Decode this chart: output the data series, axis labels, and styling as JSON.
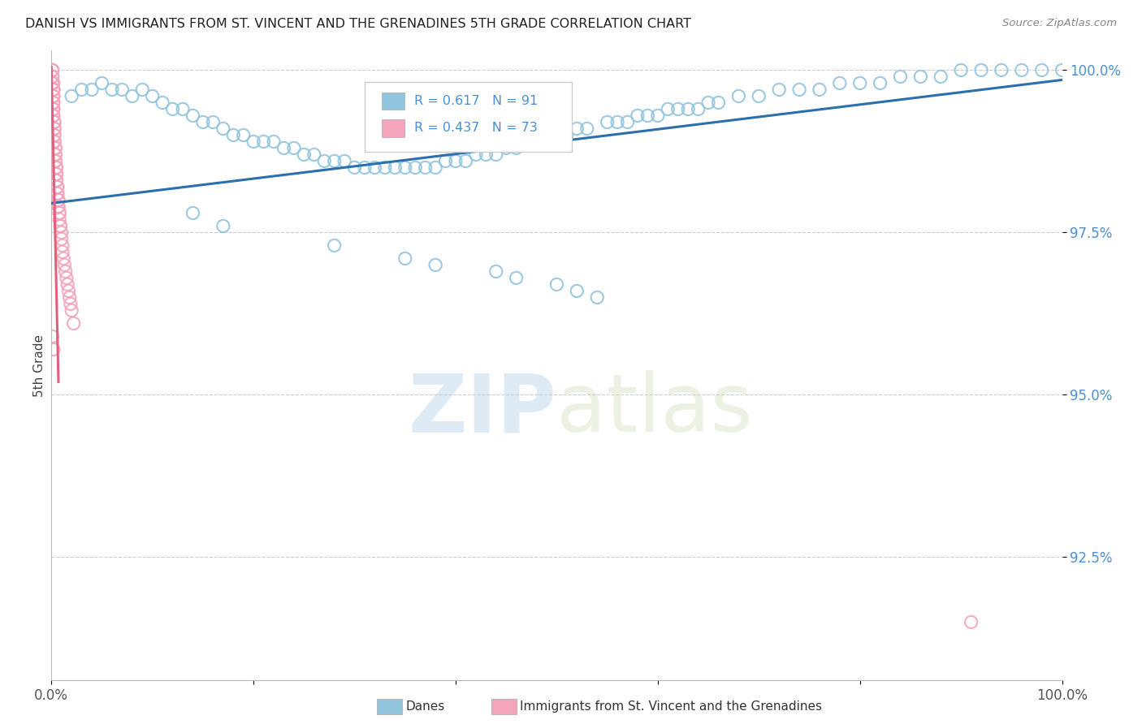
{
  "title": "DANISH VS IMMIGRANTS FROM ST. VINCENT AND THE GRENADINES 5TH GRADE CORRELATION CHART",
  "source": "Source: ZipAtlas.com",
  "ylabel": "5th Grade",
  "xlim": [
    0.0,
    1.0
  ],
  "ylim": [
    0.906,
    1.003
  ],
  "yticks": [
    0.925,
    0.95,
    0.975,
    1.0
  ],
  "ytick_labels": [
    "92.5%",
    "95.0%",
    "97.5%",
    "100.0%"
  ],
  "xticks": [
    0.0,
    0.2,
    0.4,
    0.6,
    0.8,
    1.0
  ],
  "xtick_labels": [
    "0.0%",
    "",
    "",
    "",
    "",
    "100.0%"
  ],
  "blue_color": "#92c5de",
  "pink_color": "#f4a5bc",
  "blue_line_color": "#2c6fad",
  "pink_line_color": "#e0607e",
  "legend_blue_R": "R = 0.617",
  "legend_blue_N": "N = 91",
  "legend_pink_R": "R = 0.437",
  "legend_pink_N": "N = 73",
  "legend_label_blue": "Danes",
  "legend_label_pink": "Immigrants from St. Vincent and the Grenadines",
  "blue_trendline_x": [
    0.0,
    1.0
  ],
  "blue_trendline_y": [
    0.9795,
    0.9985
  ],
  "pink_trendline_x": [
    0.0,
    0.007
  ],
  "pink_trendline_y": [
    1.0005,
    0.952
  ],
  "watermark_zip": "ZIP",
  "watermark_atlas": "atlas",
  "background_color": "#ffffff",
  "grid_color": "#cccccc",
  "blue_scatter_x": [
    0.02,
    0.03,
    0.04,
    0.05,
    0.06,
    0.07,
    0.08,
    0.09,
    0.1,
    0.11,
    0.12,
    0.13,
    0.14,
    0.15,
    0.16,
    0.17,
    0.18,
    0.19,
    0.2,
    0.21,
    0.22,
    0.23,
    0.24,
    0.25,
    0.26,
    0.27,
    0.28,
    0.29,
    0.3,
    0.31,
    0.32,
    0.33,
    0.34,
    0.35,
    0.36,
    0.37,
    0.38,
    0.39,
    0.4,
    0.41,
    0.42,
    0.43,
    0.44,
    0.45,
    0.46,
    0.47,
    0.48,
    0.49,
    0.5,
    0.51,
    0.52,
    0.53,
    0.55,
    0.56,
    0.57,
    0.58,
    0.59,
    0.6,
    0.61,
    0.62,
    0.63,
    0.64,
    0.65,
    0.66,
    0.68,
    0.7,
    0.72,
    0.74,
    0.76,
    0.78,
    0.8,
    0.82,
    0.84,
    0.86,
    0.88,
    0.9,
    0.92,
    0.94,
    0.96,
    0.98,
    1.0,
    0.14,
    0.17,
    0.28,
    0.35,
    0.38,
    0.44,
    0.46,
    0.5,
    0.52,
    0.54
  ],
  "blue_scatter_y": [
    0.996,
    0.997,
    0.997,
    0.998,
    0.997,
    0.997,
    0.996,
    0.997,
    0.996,
    0.995,
    0.994,
    0.994,
    0.993,
    0.992,
    0.992,
    0.991,
    0.99,
    0.99,
    0.989,
    0.989,
    0.989,
    0.988,
    0.988,
    0.987,
    0.987,
    0.986,
    0.986,
    0.986,
    0.985,
    0.985,
    0.985,
    0.985,
    0.985,
    0.985,
    0.985,
    0.985,
    0.985,
    0.986,
    0.986,
    0.986,
    0.987,
    0.987,
    0.987,
    0.988,
    0.988,
    0.989,
    0.989,
    0.99,
    0.99,
    0.99,
    0.991,
    0.991,
    0.992,
    0.992,
    0.992,
    0.993,
    0.993,
    0.993,
    0.994,
    0.994,
    0.994,
    0.994,
    0.995,
    0.995,
    0.996,
    0.996,
    0.997,
    0.997,
    0.997,
    0.998,
    0.998,
    0.998,
    0.999,
    0.999,
    0.999,
    1.0,
    1.0,
    1.0,
    1.0,
    1.0,
    1.0,
    0.978,
    0.976,
    0.973,
    0.971,
    0.97,
    0.969,
    0.968,
    0.967,
    0.966,
    0.965
  ],
  "pink_scatter_x": [
    0.001,
    0.001,
    0.001,
    0.001,
    0.001,
    0.001,
    0.001,
    0.001,
    0.001,
    0.001,
    0.002,
    0.002,
    0.002,
    0.002,
    0.002,
    0.002,
    0.002,
    0.002,
    0.002,
    0.002,
    0.002,
    0.002,
    0.002,
    0.003,
    0.003,
    0.003,
    0.003,
    0.003,
    0.003,
    0.003,
    0.003,
    0.004,
    0.004,
    0.004,
    0.004,
    0.004,
    0.004,
    0.005,
    0.005,
    0.005,
    0.005,
    0.005,
    0.005,
    0.006,
    0.006,
    0.006,
    0.006,
    0.007,
    0.007,
    0.007,
    0.007,
    0.008,
    0.008,
    0.008,
    0.009,
    0.009,
    0.01,
    0.01,
    0.011,
    0.011,
    0.012,
    0.013,
    0.014,
    0.015,
    0.016,
    0.017,
    0.018,
    0.019,
    0.02,
    0.022,
    0.001,
    0.002,
    0.91
  ],
  "pink_scatter_y": [
    1.0,
    1.0,
    1.0,
    0.999,
    0.999,
    0.999,
    0.999,
    0.998,
    0.998,
    0.998,
    0.998,
    0.997,
    0.997,
    0.997,
    0.996,
    0.996,
    0.996,
    0.995,
    0.995,
    0.994,
    0.994,
    0.993,
    0.993,
    0.992,
    0.992,
    0.991,
    0.991,
    0.99,
    0.99,
    0.989,
    0.989,
    0.988,
    0.988,
    0.987,
    0.987,
    0.986,
    0.986,
    0.985,
    0.985,
    0.984,
    0.984,
    0.983,
    0.983,
    0.982,
    0.982,
    0.981,
    0.981,
    0.98,
    0.98,
    0.979,
    0.979,
    0.978,
    0.978,
    0.977,
    0.976,
    0.976,
    0.975,
    0.974,
    0.973,
    0.972,
    0.971,
    0.97,
    0.969,
    0.968,
    0.967,
    0.966,
    0.965,
    0.964,
    0.963,
    0.961,
    0.959,
    0.957,
    0.915
  ]
}
